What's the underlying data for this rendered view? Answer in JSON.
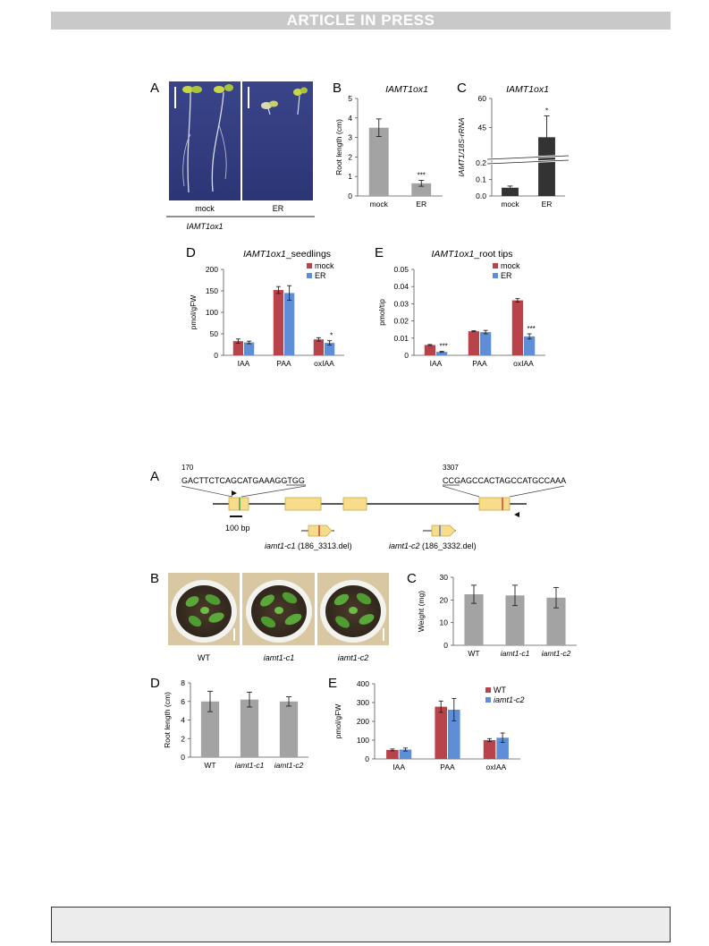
{
  "header": {
    "banner": "ARTICLE IN PRESS"
  },
  "fig1": {
    "panelA": {
      "letter": "A",
      "labels": [
        "mock",
        "ER"
      ],
      "genotype": "IAMT1ox1"
    },
    "panelB": {
      "letter": "B"
    },
    "panelC": {
      "letter": "C"
    },
    "panelD": {
      "letter": "D"
    },
    "panelE": {
      "letter": "E"
    }
  },
  "fig2": {
    "panelA": {
      "letter": "A",
      "seq_left_pos": "170",
      "seq_left": "GACTTCTCAGCATGAAAGGTGG",
      "seq_right_pos": "3307",
      "seq_right": "CCGAGCCACTAGCCATGCCAAA",
      "scale_label": "100 bp",
      "allele1_name": "iamt1-c1",
      "allele1_detail": " (186_3313.del)",
      "allele2_name": "iamt1-c2",
      "allele2_detail": " (186_3332.del)"
    },
    "panelB": {
      "letter": "B",
      "labels": [
        "WT",
        "iamt1-c1",
        "iamt1-c2"
      ]
    },
    "panelC": {
      "letter": "C"
    },
    "panelD": {
      "letter": "D"
    },
    "panelE": {
      "letter": "E"
    }
  },
  "colors": {
    "red": "#b8434a",
    "blue": "#5f8ed8",
    "grey": "#a3a3a3",
    "dark": "#333333"
  },
  "chart_data": [
    {
      "id": "f1B",
      "type": "bar",
      "title": "IAMT1ox1",
      "categories": [
        "mock",
        "ER"
      ],
      "values": [
        3.5,
        0.65
      ],
      "errors": [
        0.45,
        0.15
      ],
      "ylabel": "Root length (cm)",
      "ylim": [
        0,
        5
      ],
      "yticks": [
        "0",
        "1",
        "2",
        "3",
        "4",
        "5"
      ],
      "annotations": [
        {
          "category": "ER",
          "text": "***"
        }
      ]
    },
    {
      "id": "f1C",
      "type": "bar",
      "title": "IAMT1ox1",
      "categories": [
        "mock",
        "ER"
      ],
      "values": [
        0.05,
        40
      ],
      "errors": [
        0.01,
        11
      ],
      "ylabel": "IAMT1/18S-rRNA",
      "yticks": [
        "0.0",
        "0.1",
        "0.2",
        "45",
        "60"
      ],
      "axis_break": true,
      "annotations": [
        {
          "category": "ER",
          "text": "*"
        }
      ]
    },
    {
      "id": "f1D",
      "type": "bar",
      "title": "IAMT1ox1_seedlings",
      "categories": [
        "IAA",
        "PAA",
        "oxIAA"
      ],
      "series": [
        {
          "name": "mock",
          "values": [
            33,
            152,
            37
          ],
          "errors": [
            5,
            8,
            4
          ]
        },
        {
          "name": "ER",
          "values": [
            30,
            145,
            29
          ],
          "errors": [
            3,
            17,
            5
          ]
        }
      ],
      "ylabel": "pmol/gFW",
      "ylim": [
        0,
        200
      ],
      "yticks": [
        "0",
        "50",
        "100",
        "150",
        "200"
      ],
      "annotations": [
        {
          "category": "oxIAA",
          "series": "ER",
          "text": "*"
        }
      ]
    },
    {
      "id": "f1E",
      "type": "bar",
      "title": "IAMT1ox1_root tips",
      "categories": [
        "IAA",
        "PAA",
        "oxIAA"
      ],
      "series": [
        {
          "name": "mock",
          "values": [
            0.006,
            0.014,
            0.032
          ],
          "errors": [
            0.0003,
            0.0003,
            0.001
          ]
        },
        {
          "name": "ER",
          "values": [
            0.002,
            0.0135,
            0.011
          ],
          "errors": [
            0.0003,
            0.001,
            0.0015
          ]
        }
      ],
      "ylabel": "pmol/tip",
      "ylim": [
        0,
        0.05
      ],
      "yticks": [
        "0",
        "0.01",
        "0.02",
        "0.03",
        "0.04",
        "0.05"
      ],
      "annotations": [
        {
          "category": "IAA",
          "series": "ER",
          "text": "***"
        },
        {
          "category": "oxIAA",
          "series": "ER",
          "text": "***"
        }
      ]
    },
    {
      "id": "f2C",
      "type": "bar",
      "categories": [
        "WT",
        "iamt1-c1",
        "iamt1-c2"
      ],
      "values": [
        22.5,
        22,
        21
      ],
      "errors": [
        4,
        4.5,
        4.5
      ],
      "ylabel": "Weight (mg)",
      "ylim": [
        0,
        30
      ],
      "yticks": [
        "0",
        "10",
        "20",
        "30"
      ]
    },
    {
      "id": "f2D",
      "type": "bar",
      "categories": [
        "WT",
        "iamt1-c1",
        "iamt1-c2"
      ],
      "values": [
        6.0,
        6.2,
        6.0
      ],
      "errors": [
        1.1,
        0.8,
        0.5
      ],
      "ylabel": "Root length (cm)",
      "ylim": [
        0,
        8
      ],
      "yticks": [
        "0",
        "2",
        "4",
        "6",
        "8"
      ]
    },
    {
      "id": "f2E",
      "type": "bar",
      "categories": [
        "IAA",
        "PAA",
        "oxIAA"
      ],
      "series": [
        {
          "name": "WT",
          "values": [
            48,
            278,
            100
          ],
          "errors": [
            5,
            30,
            8
          ]
        },
        {
          "name": "iamt1-c2",
          "values": [
            50,
            262,
            113
          ],
          "errors": [
            8,
            60,
            25
          ]
        }
      ],
      "ylabel": "pmol/gFW",
      "ylim": [
        0,
        400
      ],
      "yticks": [
        "0",
        "100",
        "200",
        "300",
        "400"
      ]
    }
  ]
}
